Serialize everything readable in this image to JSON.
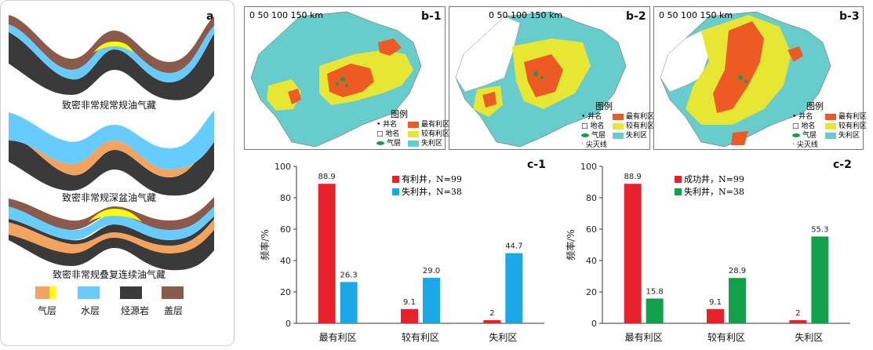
{
  "panel_a": {
    "label": "a",
    "captions": [
      "致密非常规常规油气藏",
      "致密非常规深盆油气藏",
      "致密非常规叠复连续油气藏"
    ],
    "legend": [
      {
        "label": "气层",
        "color": "#f4a35f",
        "color2": "#ffff00"
      },
      {
        "label": "水层",
        "color": "#66ccff"
      },
      {
        "label": "烃源岩",
        "color": "#3a3a3a"
      },
      {
        "label": "盖层",
        "color": "#8b5a4a"
      }
    ]
  },
  "maps": [
    {
      "label": "b-1",
      "scale": "0 50 100 150 km",
      "legend_title": "图例",
      "legend": [
        "井名",
        "地名",
        "气层",
        "最有利区",
        "较有利区",
        "失利区"
      ]
    },
    {
      "label": "b-2",
      "scale": "0 50 100 150 km",
      "legend_title": "图例",
      "legend": [
        "井名",
        "地名",
        "气层",
        "尖灭线",
        "最有利区",
        "较有利区",
        "失利区"
      ]
    },
    {
      "label": "b-3",
      "scale": "0 50 100 150 km",
      "legend_title": "图例",
      "legend": [
        "井名",
        "地名",
        "气层",
        "尖灭线",
        "最有利区",
        "较有利区",
        "失利区"
      ]
    }
  ],
  "colors": {
    "best": "#ee5a24",
    "good": "#e6e633",
    "fail": "#66cccc",
    "red": "#e8212b",
    "blue": "#1aa8e8",
    "green": "#13a04a"
  },
  "chart_data": [
    {
      "type": "bar",
      "label": "c-1",
      "categories": [
        "最有利区",
        "较有利区",
        "失利区"
      ],
      "ylabel": "频率/%",
      "ylim": [
        0,
        100
      ],
      "yticks": [
        0,
        20,
        40,
        60,
        80,
        100
      ],
      "series": [
        {
          "name": "有利井，N=99",
          "color": "#e8212b",
          "values": [
            88.9,
            9.1,
            2
          ],
          "labels": [
            "88.9",
            "9.1",
            "2"
          ]
        },
        {
          "name": "失利井，N=38",
          "color": "#1aa8e8",
          "values": [
            26.3,
            29.0,
            44.7
          ],
          "labels": [
            "26.3",
            "29.0",
            "44.7"
          ]
        }
      ]
    },
    {
      "type": "bar",
      "label": "c-2",
      "categories": [
        "最有利区",
        "较有利区",
        "失利区"
      ],
      "ylabel": "频率/%",
      "ylim": [
        0,
        100
      ],
      "yticks": [
        0,
        20,
        40,
        60,
        80,
        100
      ],
      "series": [
        {
          "name": "成功井，N=99",
          "color": "#e8212b",
          "values": [
            88.9,
            9.1,
            2
          ],
          "labels": [
            "88.9",
            "9.1",
            "2"
          ]
        },
        {
          "name": "失利井，N=38",
          "color": "#13a04a",
          "values": [
            15.8,
            28.9,
            55.3
          ],
          "labels": [
            "15.8",
            "28.9",
            "55.3"
          ]
        }
      ]
    }
  ]
}
